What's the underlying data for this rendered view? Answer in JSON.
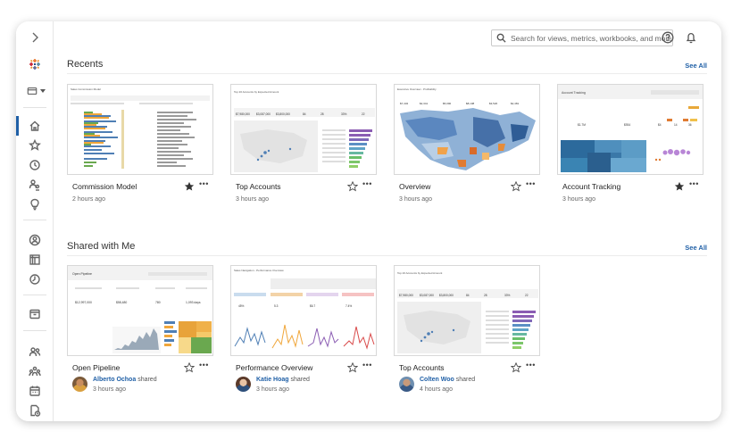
{
  "colors": {
    "accent": "#1f5fa6",
    "star_filled": "#333333"
  },
  "sidebar": {
    "items": [
      {
        "name": "expand-icon"
      },
      {
        "name": "tableau-logo-icon"
      },
      {
        "name": "site-selector-icon"
      },
      {
        "name": "home-icon"
      },
      {
        "name": "favorites-icon"
      },
      {
        "name": "recents-icon"
      },
      {
        "name": "shared-with-me-icon"
      },
      {
        "name": "recommendations-icon"
      },
      {
        "name": "personal-space-icon"
      },
      {
        "name": "explore-icon"
      },
      {
        "name": "collections-icon"
      },
      {
        "name": "external-assets-icon"
      },
      {
        "name": "users-icon"
      },
      {
        "name": "groups-icon"
      },
      {
        "name": "schedules-icon"
      },
      {
        "name": "jobs-icon"
      }
    ]
  },
  "search": {
    "placeholder": "Search for views, metrics, workbooks, and more"
  },
  "recents": {
    "title": "Recents",
    "see_all": "See All",
    "cards": [
      {
        "title": "Commission Model",
        "time": "2 hours ago",
        "favorite": true,
        "thumb_title": "Sales Commission Model"
      },
      {
        "title": "Top Accounts",
        "time": "3 hours ago",
        "favorite": false,
        "thumb_title": "Top 20 Accounts by Expected Amount"
      },
      {
        "title": "Overview",
        "time": "3 hours ago",
        "favorite": false,
        "thumb_title": "Executive Overview - Profitability"
      },
      {
        "title": "Account Tracking",
        "time": "3 hours ago",
        "favorite": true,
        "thumb_title": "Account Tracking"
      }
    ]
  },
  "shared": {
    "title": "Shared with Me",
    "see_all": "See All",
    "cards": [
      {
        "title": "Open Pipeline",
        "user": "Alberto Ochoa",
        "action": "shared",
        "time": "3 hours ago",
        "thumb_title": "Open Pipeline"
      },
      {
        "title": "Performance Overview",
        "user": "Katie Hoag",
        "action": "shared",
        "time": "3 hours ago",
        "thumb_title": "Sales Navigation - Performance Overview"
      },
      {
        "title": "Top Accounts",
        "user": "Colten Woo",
        "action": "shared",
        "time": "4 hours ago",
        "thumb_title": "Top 20 Accounts by Expected Amount"
      }
    ]
  }
}
